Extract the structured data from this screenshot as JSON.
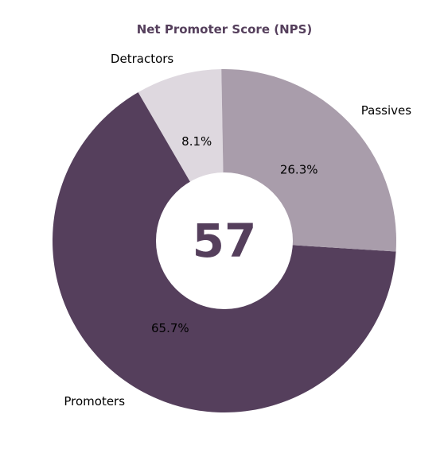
{
  "chart_data": {
    "type": "pie",
    "style": "donut",
    "title": "Net Promoter Score (NPS)",
    "center_value": "57",
    "start_angle_deg": 91,
    "direction": "counterclockwise",
    "slices": [
      {
        "label": "Detractors",
        "value": 8.1,
        "pct_label": "8.1%",
        "color": "#ded8df"
      },
      {
        "label": "Promoters",
        "value": 65.7,
        "pct_label": "65.7%",
        "color": "#553f5c"
      },
      {
        "label": "Passives",
        "value": 26.3,
        "pct_label": "26.3%",
        "color": "#a99dab"
      }
    ],
    "title_color": "#553f5c",
    "center_color": "#553f5c",
    "legend": "none"
  }
}
